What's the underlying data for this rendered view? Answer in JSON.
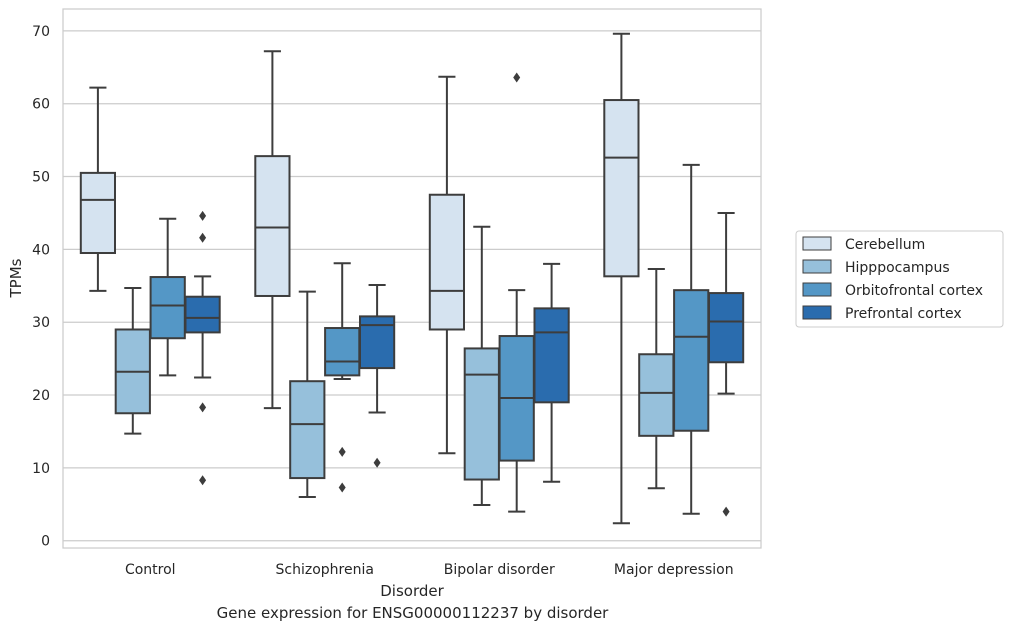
{
  "caption": "Gene expression for ENSG00000112237 by disorder",
  "chart_data": {
    "type": "box",
    "xlabel": "Disorder",
    "ylabel": "TPMs",
    "ylim": [
      -1,
      73
    ],
    "yticks": [
      0,
      10,
      20,
      30,
      40,
      50,
      60,
      70
    ],
    "grid": "horizontal",
    "legend_position": "right",
    "categories": [
      "Control",
      "Schizophrenia",
      "Bipolar disorder",
      "Major depression"
    ],
    "series": [
      {
        "name": "Cerebellum",
        "color": "#d5e3f0",
        "boxes": [
          {
            "whislo": 34.3,
            "q1": 39.5,
            "med": 46.8,
            "q3": 50.5,
            "whishi": 62.2,
            "fliers": []
          },
          {
            "whislo": 18.2,
            "q1": 33.6,
            "med": 43.0,
            "q3": 52.8,
            "whishi": 67.2,
            "fliers": []
          },
          {
            "whislo": 12.0,
            "q1": 29.0,
            "med": 34.3,
            "q3": 47.5,
            "whishi": 63.7,
            "fliers": []
          },
          {
            "whislo": 2.4,
            "q1": 36.3,
            "med": 52.6,
            "q3": 60.5,
            "whishi": 69.6,
            "fliers": []
          }
        ]
      },
      {
        "name": "Hipppocampus",
        "color": "#96c0db",
        "boxes": [
          {
            "whislo": 14.7,
            "q1": 17.5,
            "med": 23.2,
            "q3": 29.0,
            "whishi": 34.7,
            "fliers": []
          },
          {
            "whislo": 6.0,
            "q1": 8.6,
            "med": 16.0,
            "q3": 21.9,
            "whishi": 34.2,
            "fliers": []
          },
          {
            "whislo": 4.9,
            "q1": 8.4,
            "med": 22.8,
            "q3": 26.4,
            "whishi": 43.1,
            "fliers": []
          },
          {
            "whislo": 7.2,
            "q1": 14.4,
            "med": 20.3,
            "q3": 25.6,
            "whishi": 37.3,
            "fliers": []
          }
        ]
      },
      {
        "name": "Orbitofrontal cortex",
        "color": "#5497c6",
        "boxes": [
          {
            "whislo": 22.7,
            "q1": 27.8,
            "med": 32.3,
            "q3": 36.2,
            "whishi": 44.2,
            "fliers": []
          },
          {
            "whislo": 22.2,
            "q1": 22.7,
            "med": 24.6,
            "q3": 29.2,
            "whishi": 38.1,
            "fliers": [
              12.2,
              7.3
            ]
          },
          {
            "whislo": 4.0,
            "q1": 11.0,
            "med": 19.6,
            "q3": 28.1,
            "whishi": 34.4,
            "fliers": [
              63.6
            ]
          },
          {
            "whislo": 3.7,
            "q1": 15.1,
            "med": 28.0,
            "q3": 34.4,
            "whishi": 51.6,
            "fliers": []
          }
        ]
      },
      {
        "name": "Prefrontal cortex",
        "color": "#2a6cae",
        "boxes": [
          {
            "whislo": 22.4,
            "q1": 28.6,
            "med": 30.6,
            "q3": 33.5,
            "whishi": 36.3,
            "fliers": [
              44.6,
              41.6,
              18.3,
              8.3
            ]
          },
          {
            "whislo": 17.6,
            "q1": 23.7,
            "med": 29.6,
            "q3": 30.8,
            "whishi": 35.1,
            "fliers": [
              10.7
            ]
          },
          {
            "whislo": 8.1,
            "q1": 19.0,
            "med": 28.6,
            "q3": 31.9,
            "whishi": 38.0,
            "fliers": []
          },
          {
            "whislo": 20.2,
            "q1": 24.5,
            "med": 30.1,
            "q3": 34.0,
            "whishi": 45.0,
            "fliers": [
              4.0
            ]
          }
        ]
      }
    ]
  }
}
